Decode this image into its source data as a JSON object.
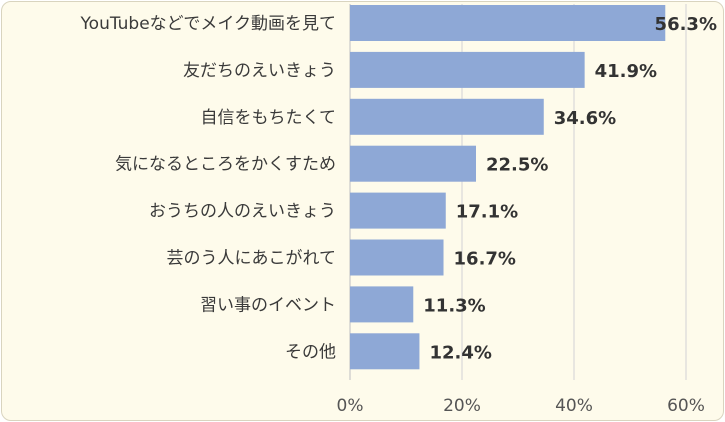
{
  "chart_data": {
    "type": "bar",
    "orientation": "horizontal",
    "categories": [
      "YouTubeなどでメイク動画を見て",
      "友だちのえいきょう",
      "自信をもちたくて",
      "気になるところをかくすため",
      "おうちの人のえいきょう",
      "芸のう人にあこがれて",
      "習い事のイベント",
      "その他"
    ],
    "values": [
      56.3,
      41.9,
      34.6,
      22.5,
      17.1,
      16.7,
      11.3,
      12.4
    ],
    "value_labels": [
      "56.3%",
      "41.9%",
      "34.6%",
      "22.5%",
      "17.1%",
      "16.7%",
      "11.3%",
      "12.4%"
    ],
    "xlim": [
      0,
      60
    ],
    "xticks": [
      0,
      20,
      40,
      60
    ],
    "xtick_labels": [
      "0%",
      "20%",
      "40%",
      "60%"
    ],
    "grid": "vertical",
    "bar_color": "#8ea8d6",
    "background_color": "#fefbeb"
  }
}
